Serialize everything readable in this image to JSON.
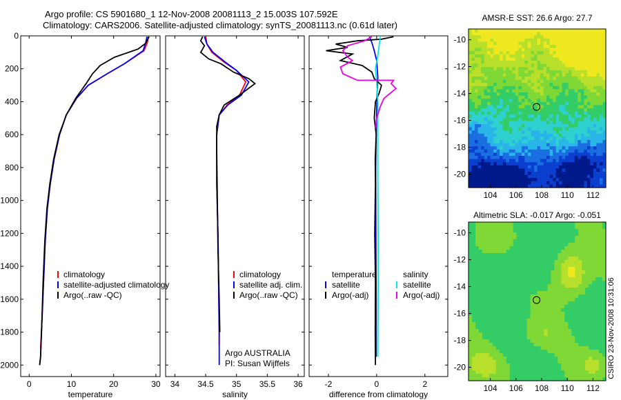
{
  "header": {
    "line1": "Argo profile: CS 5901680_1 12-Nov-2008 20081113_2 15.003S 107.592E",
    "line2": "Climatology: CARS2006. Satellite-adjusted climatology: synTS_20081113.nc (0.61d later)"
  },
  "credit": "CSIRO 23-Nov-2008 10:31:06",
  "colors": {
    "climatology": "#ff0000",
    "satellite": "#0000ff",
    "argo": "#000000",
    "sat_salt": "#00e5e5",
    "argo_salt": "#e800e8"
  },
  "chart_data": [
    {
      "type": "line",
      "xlabel": "temperature",
      "ylabel": "",
      "xlim": [
        -2,
        31
      ],
      "ylim": [
        2070,
        0
      ],
      "xticks": [
        0,
        10,
        20,
        30
      ],
      "yticks": [
        0,
        200,
        400,
        600,
        800,
        1000,
        1200,
        1400,
        1600,
        1800,
        2000
      ],
      "legend": [
        "climatology",
        "satellite-adjusted climatology",
        "Argo(..raw -QC)"
      ],
      "series": [
        {
          "name": "climatology",
          "color": "#ff0000",
          "x": [
            28.2,
            28.0,
            27.2,
            22.5,
            18.5,
            14.0,
            11.2,
            8.8,
            7.2,
            5.9,
            5.0,
            4.3,
            3.8,
            3.4,
            3.0,
            2.7
          ],
          "y": [
            5,
            40,
            90,
            170,
            230,
            300,
            380,
            480,
            600,
            750,
            900,
            1050,
            1250,
            1500,
            1750,
            1900
          ]
        },
        {
          "name": "satellite-adjusted climatology",
          "color": "#0000ff",
          "x": [
            27.9,
            27.6,
            27.0,
            22.5,
            18.5,
            14.0,
            11.2,
            8.8,
            7.2,
            5.9,
            5.0,
            4.3,
            3.8,
            3.4,
            3.0,
            2.7,
            2.5
          ],
          "y": [
            5,
            40,
            90,
            170,
            230,
            300,
            380,
            480,
            600,
            750,
            900,
            1050,
            1250,
            1500,
            1750,
            1950,
            2000
          ]
        },
        {
          "name": "Argo(..raw -QC)",
          "color": "#000000",
          "x": [
            28.4,
            27.6,
            25.8,
            20.2,
            16.8,
            15.0,
            13.5,
            11.0,
            8.8,
            7.1,
            5.8,
            4.9,
            4.2,
            3.7,
            3.3,
            3.0,
            2.7,
            2.5
          ],
          "y": [
            5,
            45,
            80,
            130,
            180,
            230,
            290,
            380,
            480,
            600,
            750,
            900,
            1050,
            1250,
            1500,
            1750,
            1950,
            2000
          ]
        }
      ]
    },
    {
      "type": "line",
      "xlabel": "salinity",
      "ylabel": "",
      "xlim": [
        33.85,
        36.1
      ],
      "ylim": [
        2070,
        0
      ],
      "xticks": [
        34,
        34.5,
        35,
        35.5,
        36
      ],
      "legend": [
        "climatology",
        "satellite adj. clim.",
        "Argo(..raw -QC)"
      ],
      "annotation": [
        "Argo AUSTRALIA",
        "PI: Susan Wijffels"
      ],
      "series": [
        {
          "name": "climatology",
          "color": "#ff0000",
          "x": [
            34.5,
            34.52,
            34.6,
            34.8,
            35.0,
            35.15,
            35.05,
            34.85,
            34.72,
            34.68,
            34.68,
            34.7,
            34.71,
            34.72,
            34.72
          ],
          "y": [
            5,
            50,
            100,
            160,
            210,
            280,
            360,
            420,
            480,
            600,
            900,
            1200,
            1500,
            1800,
            1880
          ]
        },
        {
          "name": "satellite adj. clim.",
          "color": "#0000ff",
          "x": [
            34.48,
            34.52,
            34.62,
            34.82,
            35.0,
            35.2,
            35.08,
            34.86,
            34.72,
            34.68,
            34.68,
            34.7,
            34.71,
            34.72,
            34.72
          ],
          "y": [
            5,
            50,
            100,
            160,
            210,
            280,
            360,
            420,
            480,
            600,
            900,
            1200,
            1500,
            1800,
            2000
          ]
        },
        {
          "name": "Argo(..raw -QC)",
          "color": "#000000",
          "x": [
            34.45,
            34.42,
            34.48,
            34.42,
            34.55,
            34.75,
            34.95,
            35.2,
            35.3,
            35.05,
            34.8,
            34.72,
            34.68,
            34.68,
            34.69,
            34.7,
            34.72,
            34.73
          ],
          "y": [
            5,
            30,
            60,
            100,
            140,
            170,
            220,
            260,
            290,
            360,
            420,
            480,
            550,
            700,
            1000,
            1300,
            1600,
            1800
          ]
        }
      ]
    },
    {
      "type": "line",
      "xlabel": "difference from climatology",
      "ylabel": "",
      "xlim": [
        -2.8,
        2.95
      ],
      "ylim": [
        2070,
        0
      ],
      "xticks": [
        -2,
        0,
        2
      ],
      "legend_columns": [
        {
          "title": "temperature",
          "items": [
            "satellite",
            "Argo(-adj)"
          ]
        },
        {
          "title": "salinity",
          "items": [
            "satellite",
            "Argo(-adj)"
          ]
        }
      ],
      "series": [
        {
          "name": "temperature satellite",
          "color": "#0000ff",
          "x": [
            -0.3,
            -0.2,
            -0.1,
            0.0,
            0.05,
            0.02,
            0.0,
            -0.02,
            -0.04,
            -0.03,
            -0.02,
            -0.02
          ],
          "y": [
            5,
            40,
            90,
            150,
            250,
            350,
            450,
            600,
            800,
            1200,
            1600,
            1950
          ]
        },
        {
          "name": "temperature Argo(-adj)",
          "color": "#000000",
          "x": [
            0.7,
            0.2,
            -0.8,
            -1.7,
            -1.2,
            -2.1,
            -1.0,
            -1.5,
            -0.6,
            -0.2,
            -0.1,
            0.2,
            0.1,
            -0.05,
            -0.1,
            -0.02,
            -0.06,
            -0.05,
            -0.08,
            -0.05,
            -0.06,
            -0.05
          ],
          "y": [
            5,
            20,
            30,
            50,
            70,
            90,
            110,
            150,
            180,
            220,
            260,
            300,
            350,
            400,
            500,
            600,
            750,
            900,
            1200,
            1500,
            1800,
            2000
          ]
        },
        {
          "name": "salinity satellite",
          "color": "#00e5e5",
          "x": [
            0.15,
            0.1,
            0.05,
            -0.05,
            0.0,
            0.05,
            0.05,
            0.05,
            0.06,
            0.06,
            0.05
          ],
          "y": [
            5,
            60,
            120,
            200,
            280,
            400,
            500,
            800,
            1200,
            1600,
            1950
          ]
        },
        {
          "name": "salinity Argo(-adj)",
          "color": "#e800e8",
          "x": [
            -0.2,
            -0.5,
            -1.2,
            -1.4,
            -1.2,
            -1.0,
            -1.5,
            -1.4,
            -0.8,
            0.7,
            0.6,
            0.8,
            0.3,
            0.15,
            0.0,
            -0.05
          ],
          "y": [
            5,
            30,
            60,
            90,
            130,
            150,
            190,
            230,
            270,
            270,
            290,
            320,
            380,
            430,
            500,
            560
          ]
        }
      ]
    },
    {
      "type": "heatmap",
      "title": "AMSR-E SST: 26.6 Argo: 27.7",
      "xlim": [
        102.3,
        113
      ],
      "ylim": [
        -21,
        -9.2
      ],
      "xticks": [
        104,
        106,
        108,
        110,
        112
      ],
      "yticks": [
        -10,
        -12,
        -14,
        -16,
        -18,
        -20
      ],
      "marker": {
        "x": 107.6,
        "y": -15.0
      },
      "colormap": [
        "#001a8c",
        "#0a3fcf",
        "#1a6fe0",
        "#29b5e8",
        "#2fd0d0",
        "#33cc66",
        "#7fd835",
        "#b8e02a",
        "#f0e81e"
      ],
      "fields": [
        {
          "cx": 112.5,
          "cy": -11.0,
          "amp": 1.2,
          "sx": 2.0,
          "sy": 1.6
        },
        {
          "cx": 104.5,
          "cy": -20.5,
          "amp": -1.3,
          "sx": 3.0,
          "sy": 1.8
        },
        {
          "cx": 111.0,
          "cy": -19.5,
          "amp": -0.9,
          "sx": 2.5,
          "sy": 1.8
        },
        {
          "cx": 103.0,
          "cy": -17.0,
          "amp": -0.5,
          "sx": 1.5,
          "sy": 1.5
        }
      ]
    },
    {
      "type": "heatmap",
      "title": "Altimetric SLA: -0.017 Argo: -0.051",
      "xlim": [
        102.3,
        113
      ],
      "ylim": [
        -21,
        -9.2
      ],
      "xticks": [
        104,
        106,
        108,
        110,
        112
      ],
      "yticks": [
        -10,
        -12,
        -14,
        -16,
        -18,
        -20
      ],
      "marker": {
        "x": 107.6,
        "y": -15.0
      },
      "colormap": [
        "#1fbf7f",
        "#33cc66",
        "#7fd835",
        "#b8e02a",
        "#f0e81e"
      ],
      "fields": [
        {
          "cx": 110.3,
          "cy": -13.0,
          "amp": 1.6,
          "sx": 1.2,
          "sy": 1.6
        },
        {
          "cx": 103.5,
          "cy": -19.8,
          "amp": 1.0,
          "sx": 1.4,
          "sy": 1.0
        },
        {
          "cx": 112.0,
          "cy": -19.8,
          "amp": 0.9,
          "sx": 1.0,
          "sy": 1.0
        },
        {
          "cx": 107.0,
          "cy": -12.5,
          "amp": -0.6,
          "sx": 1.4,
          "sy": 1.5
        },
        {
          "cx": 108.0,
          "cy": -17.5,
          "amp": 0.6,
          "sx": 1.4,
          "sy": 1.0
        },
        {
          "cx": 103.5,
          "cy": -10.5,
          "amp": 0.5,
          "sx": 1.0,
          "sy": 1.2
        }
      ]
    }
  ]
}
